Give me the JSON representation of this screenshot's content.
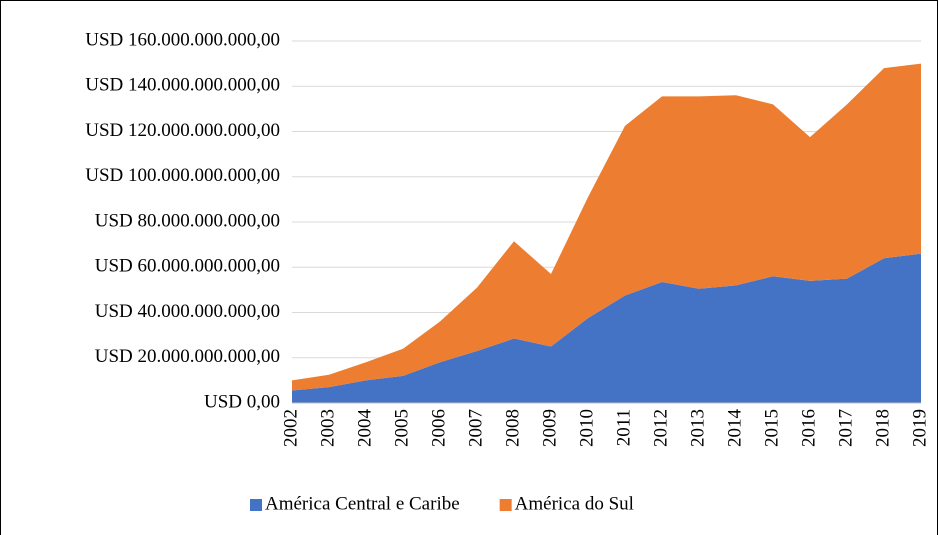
{
  "chart_data": {
    "type": "stacked_area",
    "categories": [
      "2002",
      "2003",
      "2004",
      "2005",
      "2006",
      "2007",
      "2008",
      "2009",
      "2010",
      "2011",
      "2012",
      "2013",
      "2014",
      "2015",
      "2016",
      "2017",
      "2018",
      "2019"
    ],
    "series": [
      {
        "name": "América Central e Caribe",
        "color": "#4472c4",
        "values": [
          5500000000,
          7000000000,
          10000000000,
          12000000000,
          18000000000,
          23000000000,
          28500000000,
          25000000000,
          37500000000,
          47500000000,
          53500000000,
          50500000000,
          52000000000,
          56000000000,
          54000000000,
          55000000000,
          64000000000,
          66000000000
        ]
      },
      {
        "name": "América do Sul",
        "color": "#ed7d31",
        "values": [
          4500000000,
          5500000000,
          8000000000,
          12000000000,
          18000000000,
          28000000000,
          43000000000,
          32000000000,
          53500000000,
          75000000000,
          82000000000,
          85000000000,
          84000000000,
          76000000000,
          63500000000,
          77000000000,
          84000000000,
          84000000000
        ]
      }
    ],
    "ylim": [
      0,
      160000000000
    ],
    "yticks": [
      {
        "value": 0,
        "label": "USD 0,00"
      },
      {
        "value": 20000000000,
        "label": "USD 20.000.000.000,00"
      },
      {
        "value": 40000000000,
        "label": "USD 40.000.000.000,00"
      },
      {
        "value": 60000000000,
        "label": "USD 60.000.000.000,00"
      },
      {
        "value": 80000000000,
        "label": "USD 80.000.000.000,00"
      },
      {
        "value": 100000000000,
        "label": "USD 100.000.000.000,00"
      },
      {
        "value": 120000000000,
        "label": "USD 120.000.000.000,00"
      },
      {
        "value": 140000000000,
        "label": "USD 140.000.000.000,00"
      },
      {
        "value": 160000000000,
        "label": "USD 160.000.000.000,00"
      }
    ],
    "grid": true,
    "legend": "bottom"
  }
}
